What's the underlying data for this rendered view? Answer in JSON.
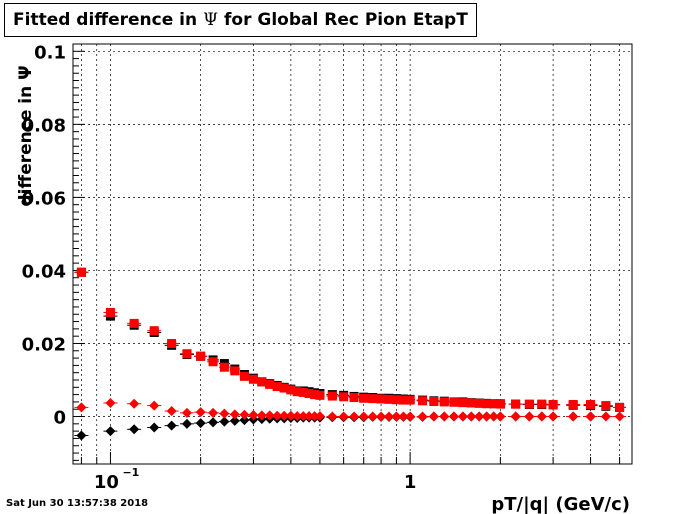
{
  "title": {
    "prefix": "Fitted difference in",
    "symbol": "Ψ",
    "suffix": "for Global Rec Pion EtapT"
  },
  "timestamp": "Sat Jun 30 13:57:38 2018",
  "colors": {
    "series_black": "#000000",
    "series_red": "#ff0000",
    "grid": "#000000"
  },
  "chart_data": {
    "type": "scatter",
    "title": "Fitted difference in Ψ for Global Rec Pion EtapT",
    "xlabel": "pT/|q| (GeV/c)",
    "ylabel": "difference in Ψ",
    "x_scale": "log",
    "xlim": [
      0.075,
      5.5
    ],
    "ylim": [
      -0.013,
      0.102
    ],
    "grid": true,
    "legend": "none",
    "x_tick_labels": [
      {
        "value": 0.1,
        "label": "10",
        "exp": "−1"
      },
      {
        "value": 1,
        "label": "1"
      }
    ],
    "y_tick_labels": [
      {
        "value": 0,
        "label": "0"
      },
      {
        "value": 0.02,
        "label": "0.02"
      },
      {
        "value": 0.04,
        "label": "0.04"
      },
      {
        "value": 0.06,
        "label": "0.06"
      },
      {
        "value": 0.08,
        "label": "0.08"
      },
      {
        "value": 0.1,
        "label": "0.1"
      }
    ],
    "series": [
      {
        "marker": "square",
        "color": "#000000",
        "x": [
          0.08,
          0.1,
          0.12,
          0.14,
          0.16,
          0.18,
          0.2,
          0.22,
          0.24,
          0.26,
          0.28,
          0.3,
          0.32,
          0.34,
          0.36,
          0.38,
          0.4,
          0.42,
          0.44,
          0.46,
          0.48,
          0.5,
          0.55,
          0.6,
          0.65,
          0.7,
          0.75,
          0.8,
          0.85,
          0.9,
          0.95,
          1.0,
          1.1,
          1.2,
          1.3,
          1.4,
          1.5,
          1.6,
          1.7,
          1.8,
          1.9,
          2.0,
          2.25,
          2.5,
          2.75,
          3.0,
          3.5,
          4.0,
          4.5,
          5.0
        ],
        "y": [
          0.0395,
          0.0275,
          0.025,
          0.023,
          0.0195,
          0.017,
          0.0165,
          0.0155,
          0.0145,
          0.013,
          0.0115,
          0.0105,
          0.0095,
          0.009,
          0.0085,
          0.008,
          0.0075,
          0.007,
          0.007,
          0.0068,
          0.0065,
          0.0063,
          0.006,
          0.0058,
          0.0055,
          0.0053,
          0.0052,
          0.005,
          0.005,
          0.0049,
          0.0048,
          0.0047,
          0.0045,
          0.0043,
          0.0042,
          0.004,
          0.004,
          0.0038,
          0.0037,
          0.0036,
          0.0035,
          0.0035,
          0.0034,
          0.0033,
          0.0033,
          0.0032,
          0.0031,
          0.003,
          0.0028,
          0.0025
        ]
      },
      {
        "marker": "square",
        "color": "#ff0000",
        "x": [
          0.08,
          0.1,
          0.12,
          0.14,
          0.16,
          0.18,
          0.2,
          0.22,
          0.24,
          0.26,
          0.28,
          0.3,
          0.32,
          0.34,
          0.36,
          0.38,
          0.4,
          0.42,
          0.44,
          0.46,
          0.48,
          0.5,
          0.55,
          0.6,
          0.65,
          0.7,
          0.75,
          0.8,
          0.85,
          0.9,
          0.95,
          1.0,
          1.1,
          1.2,
          1.3,
          1.4,
          1.5,
          1.6,
          1.7,
          1.8,
          1.9,
          2.0,
          2.25,
          2.5,
          2.75,
          3.0,
          3.5,
          4.0,
          4.5,
          5.0
        ],
        "y": [
          0.0395,
          0.0285,
          0.0255,
          0.0235,
          0.02,
          0.0172,
          0.0165,
          0.015,
          0.0135,
          0.0125,
          0.011,
          0.0102,
          0.0095,
          0.0088,
          0.0082,
          0.0078,
          0.0073,
          0.0068,
          0.0066,
          0.0063,
          0.006,
          0.0058,
          0.0056,
          0.0054,
          0.0052,
          0.005,
          0.0049,
          0.0048,
          0.0047,
          0.0046,
          0.0045,
          0.0045,
          0.0043,
          0.0041,
          0.004,
          0.0039,
          0.0038,
          0.0037,
          0.0036,
          0.0035,
          0.0035,
          0.0034,
          0.0034,
          0.0034,
          0.0034,
          0.0033,
          0.0033,
          0.0033,
          0.003,
          0.0025
        ]
      },
      {
        "marker": "diamond",
        "color": "#000000",
        "x": [
          0.08,
          0.1,
          0.12,
          0.14,
          0.16,
          0.18,
          0.2,
          0.22,
          0.24,
          0.26,
          0.28,
          0.3,
          0.32,
          0.34,
          0.36,
          0.38,
          0.4,
          0.42,
          0.44,
          0.46,
          0.48,
          0.5,
          0.55,
          0.6,
          0.65,
          0.7,
          0.75,
          0.8,
          0.85,
          0.9,
          0.95,
          1.0,
          1.1,
          1.2,
          1.3,
          1.4,
          1.5,
          1.6,
          1.7,
          1.8,
          1.9,
          2.0,
          2.25,
          2.5,
          2.75,
          3.0,
          3.5,
          4.0
        ],
        "y": [
          -0.0052,
          -0.004,
          -0.0035,
          -0.003,
          -0.0025,
          -0.002,
          -0.0018,
          -0.0016,
          -0.0014,
          -0.0012,
          -0.001,
          -0.0008,
          -0.0007,
          -0.0006,
          -0.0005,
          -0.0005,
          -0.0004,
          -0.0004,
          -0.0003,
          -0.0003,
          -0.0003,
          -0.0003,
          -0.0002,
          -0.0002,
          -0.0002,
          -0.0002,
          -0.0001,
          -0.0001,
          -0.0001,
          -0.0001,
          -0.0001,
          -0.0001,
          -0.0001,
          0.0,
          0.0,
          0.0,
          0.0,
          0.0,
          0.0,
          0.0,
          0.0,
          0.0,
          0.0,
          0.0,
          0.0,
          0.0,
          0.0,
          0.0
        ]
      },
      {
        "marker": "diamond",
        "color": "#ff0000",
        "x": [
          0.08,
          0.1,
          0.12,
          0.14,
          0.16,
          0.18,
          0.2,
          0.22,
          0.24,
          0.26,
          0.28,
          0.3,
          0.32,
          0.34,
          0.36,
          0.38,
          0.4,
          0.42,
          0.44,
          0.46,
          0.48,
          0.5,
          0.55,
          0.6,
          0.65,
          0.7,
          0.75,
          0.8,
          0.85,
          0.9,
          0.95,
          1.0,
          1.1,
          1.2,
          1.3,
          1.4,
          1.5,
          1.6,
          1.7,
          1.8,
          1.9,
          2.0,
          2.25,
          2.5,
          2.75,
          3.0,
          3.5,
          4.0,
          4.5,
          5.0
        ],
        "y": [
          0.0025,
          0.0037,
          0.0035,
          0.003,
          0.0015,
          0.001,
          0.0012,
          0.001,
          0.0008,
          0.0006,
          0.0005,
          0.0004,
          0.0003,
          0.0003,
          0.0002,
          0.0002,
          0.0002,
          0.0001,
          0.0001,
          0.0001,
          0.0001,
          0.0001,
          0.0,
          0.0,
          0.0,
          0.0,
          0.0,
          0.0,
          0.0,
          0.0,
          0.0,
          0.0,
          0.0,
          0.0,
          0.0,
          0.0,
          0.0,
          0.0,
          0.0,
          0.0,
          0.0,
          0.0,
          0.0,
          0.0,
          0.0,
          0.0,
          0.0,
          0.0,
          0.0,
          0.0
        ]
      }
    ]
  }
}
